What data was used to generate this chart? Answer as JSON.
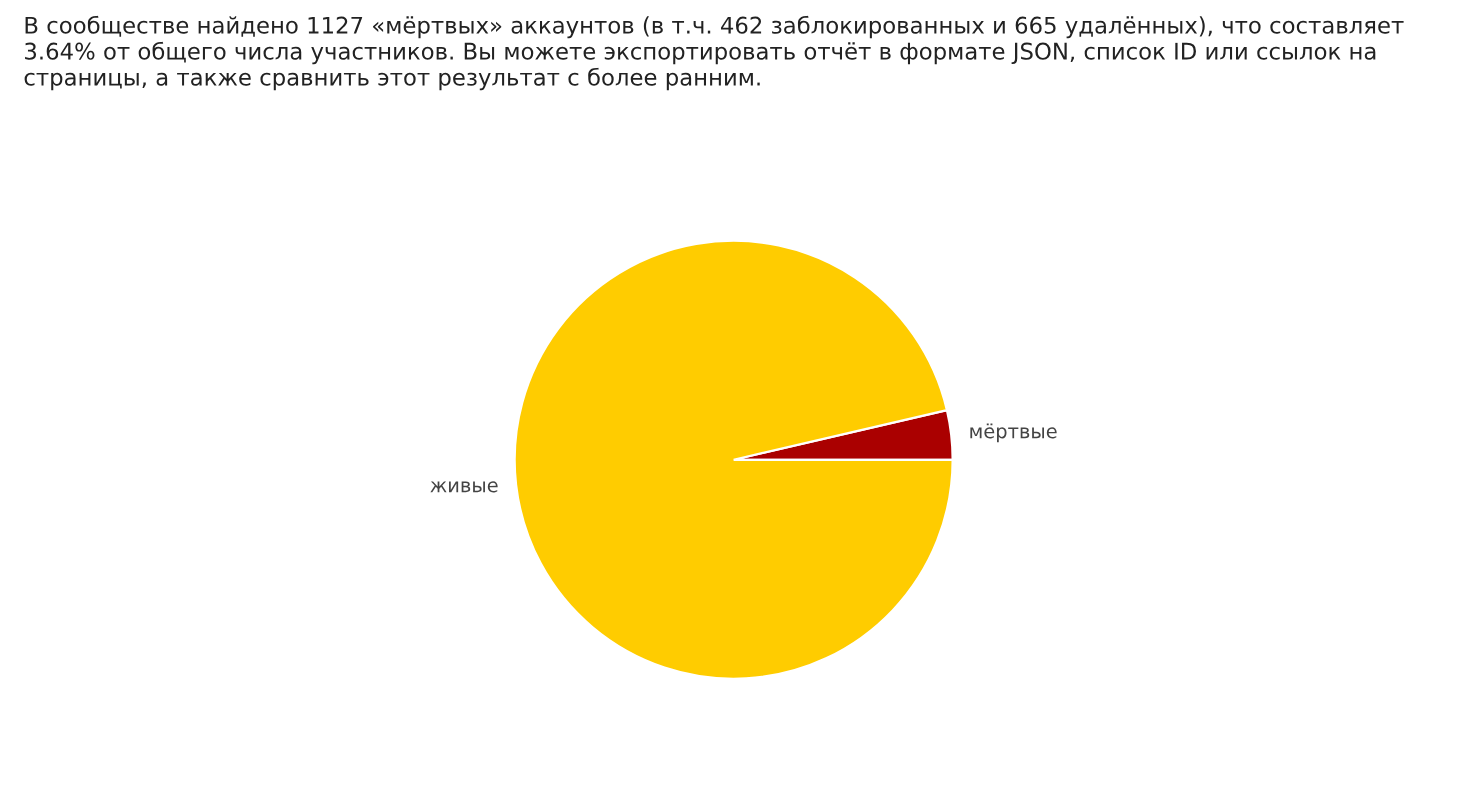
{
  "chart_data": {
    "type": "pie",
    "categories": [
      "мёртвые",
      "живые"
    ],
    "values": [
      3.64,
      96.36
    ],
    "colors": [
      "#aa0000",
      "#ffcc00"
    ],
    "annotations": [
      "В сообществе найдено 1127 «мёртвых» аккаунтов (в т.ч. 462 заблокированных и 665 удалённых), что составляет 3.64% от общего числа участников. Вы можете экспортировать отчёт в формате JSON, список ID или ссылок на страницы, а также сравнить этот результат с более ранним."
    ]
  }
}
